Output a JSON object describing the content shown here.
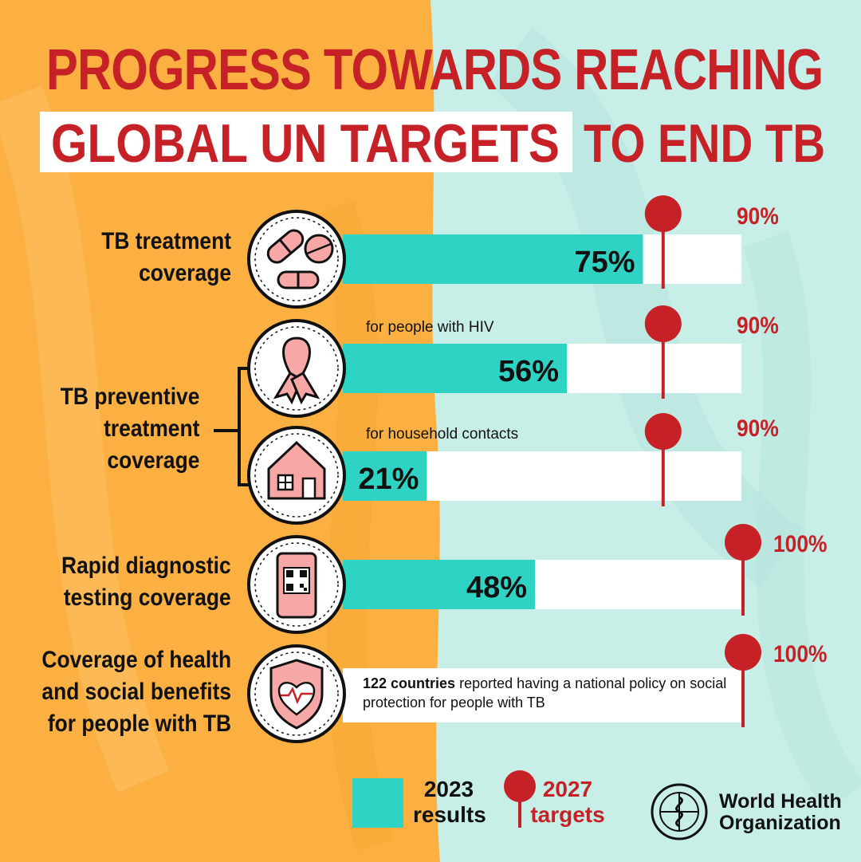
{
  "title": {
    "line1": "PROGRESS TOWARDS REACHING",
    "highlight": "GLOBAL UN TARGETS",
    "line2_rest": "TO END TB"
  },
  "labels": {
    "treatment": [
      "TB treatment",
      "coverage"
    ],
    "preventive": [
      "TB preventive",
      "treatment",
      "coverage"
    ],
    "diagnostic": [
      "Rapid diagnostic",
      "testing coverage"
    ],
    "benefits": [
      "Coverage of health",
      "and social benefits",
      "for people with TB"
    ]
  },
  "sublabels": {
    "hiv": "for people with HIV",
    "household": "for household contacts"
  },
  "policy": {
    "bold": "122 countries",
    "rest": "reported having a national policy on social protection for people with TB"
  },
  "legend": {
    "results_line1": "2023",
    "results_line2": "results",
    "targets_line1": "2027",
    "targets_line2": "targets"
  },
  "organization": {
    "line1": "World Health",
    "line2": "Organization"
  },
  "colors": {
    "result_bar": "#2ed3c3",
    "target_pin": "#c62127",
    "track": "#ffffff",
    "left_background": "#fbb041",
    "right_background": "#c7efe8"
  },
  "icons": [
    "pills-icon",
    "ribbon-icon",
    "house-icon",
    "qr-code-phone-icon",
    "heart-shield-icon"
  ],
  "chart_data": {
    "type": "bar",
    "orientation": "horizontal",
    "categories": [
      "TB treatment coverage",
      "TB preventive treatment coverage for people with HIV",
      "TB preventive treatment coverage for household contacts",
      "Rapid diagnostic testing coverage",
      "Coverage of health and social benefits for people with TB"
    ],
    "series": [
      {
        "name": "2023 results",
        "values": [
          75,
          56,
          21,
          48,
          null
        ],
        "labels": [
          "75%",
          "56%",
          "21%",
          "48%",
          ""
        ]
      },
      {
        "name": "2027 targets",
        "values": [
          90,
          90,
          90,
          100,
          100
        ],
        "labels": [
          "90%",
          "90%",
          "90%",
          "100%",
          "100%"
        ]
      }
    ],
    "xlim": [
      0,
      100
    ],
    "legend": "bottom"
  }
}
